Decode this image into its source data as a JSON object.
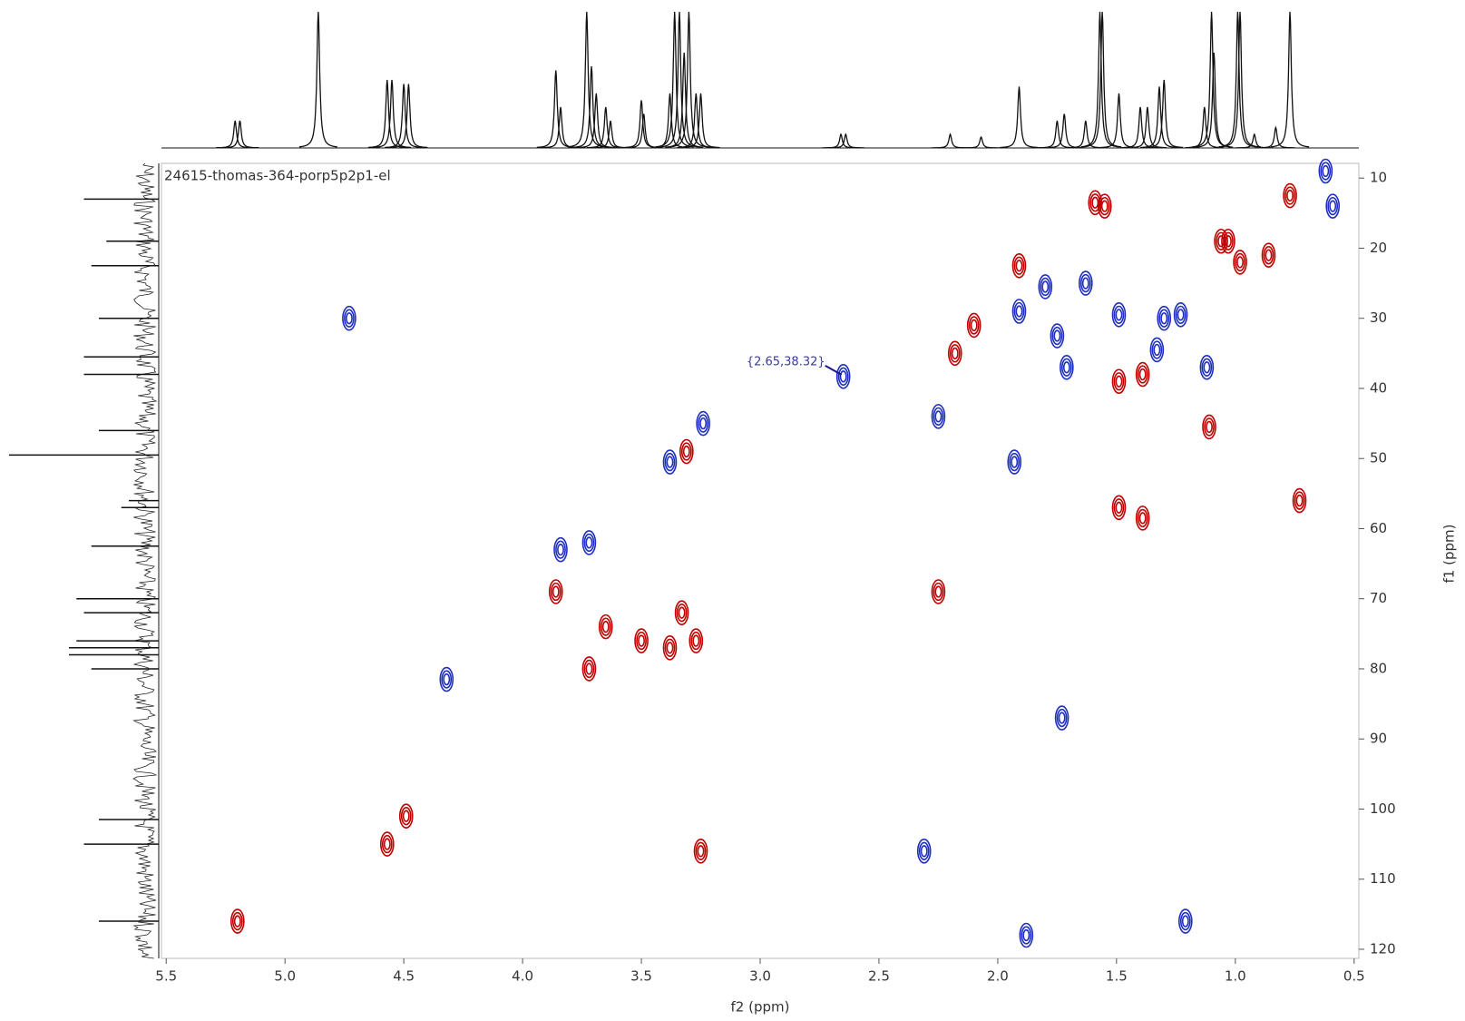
{
  "chart_data": {
    "type": "contour2d",
    "label": "24615-thomas-364-porp5p2p1-el",
    "x_label": "f2 (ppm)",
    "y_label": "f1 (ppm)",
    "annotation": "{2.65,38.32}",
    "xlim": [
      5.52,
      0.48
    ],
    "ylim": [
      7.9,
      121.3
    ],
    "xticks": [
      5.5,
      {
        "value": 5,
        "label": "5.0"
      },
      4.5,
      {
        "value": 4,
        "label": "4.0"
      },
      3.5,
      {
        "value": 3,
        "label": "3.0"
      },
      2.5,
      {
        "value": 2,
        "label": "2.0"
      },
      1.5,
      {
        "value": 1,
        "label": "1.0"
      },
      0.5
    ],
    "yticks": [
      10,
      20,
      30,
      40,
      50,
      60,
      70,
      80,
      90,
      100,
      110,
      120
    ],
    "series": [
      {
        "color": "#c00000",
        "x": [
          5.2,
          4.57,
          4.49,
          3.86,
          3.72,
          3.65,
          3.5,
          3.38,
          3.33,
          3.27,
          3.31,
          3.25,
          2.25,
          1.91,
          2.18,
          2.1,
          1.49,
          1.39,
          1.59,
          1.55,
          1.06,
          1.03,
          0.98,
          0.86,
          0.77,
          1.11,
          1.49,
          1.39,
          0.73
        ],
        "y": [
          116,
          105,
          101,
          69,
          80,
          74,
          76,
          77,
          72,
          76,
          49,
          106,
          69,
          22.5,
          35,
          31,
          39,
          38,
          13.5,
          14,
          19,
          19,
          22,
          21,
          12.5,
          45.5,
          57,
          58.5,
          56
        ]
      },
      {
        "color": "#1f2fc0",
        "x": [
          4.73,
          4.32,
          3.84,
          3.72,
          3.38,
          3.24,
          2.65,
          2.25,
          2.31,
          1.93,
          1.91,
          1.8,
          1.63,
          1.75,
          1.71,
          1.49,
          1.3,
          1.33,
          1.23,
          1.12,
          0.62,
          0.59,
          1.73,
          1.88,
          1.21
        ],
        "y": [
          30,
          81.5,
          63,
          62,
          50.5,
          45,
          38.3,
          44,
          106,
          50.5,
          29,
          25.5,
          25,
          32.5,
          37,
          29.5,
          30,
          34.5,
          29.5,
          37,
          9,
          14,
          87,
          118,
          116
        ]
      }
    ],
    "f2_projection": {
      "x": [
        5.21,
        5.19,
        4.86,
        4.57,
        4.55,
        4.5,
        4.48,
        3.86,
        3.84,
        3.73,
        3.71,
        3.69,
        3.65,
        3.63,
        3.5,
        3.49,
        3.38,
        3.36,
        3.34,
        3.32,
        3.3,
        3.27,
        3.25,
        2.66,
        2.64,
        2.2,
        2.07,
        1.91,
        1.75,
        1.72,
        1.63,
        1.57,
        1.56,
        1.49,
        1.4,
        1.37,
        1.32,
        1.3,
        1.13,
        1.1,
        1.09,
        0.99,
        0.98,
        0.92,
        0.83,
        0.77
      ],
      "heights": [
        0.2,
        0.2,
        1.0,
        0.5,
        0.5,
        0.47,
        0.47,
        0.57,
        0.3,
        1.0,
        0.6,
        0.4,
        0.3,
        0.2,
        0.35,
        0.25,
        0.4,
        1.0,
        1.0,
        0.7,
        1.0,
        0.4,
        0.4,
        0.1,
        0.1,
        0.1,
        0.08,
        0.45,
        0.2,
        0.25,
        0.2,
        1.0,
        1.0,
        0.4,
        0.3,
        0.3,
        0.45,
        0.5,
        0.3,
        1.0,
        0.7,
        1.0,
        1.0,
        0.1,
        0.15,
        1.0
      ]
    },
    "f1_projection": {
      "y": [
        13,
        19,
        22.5,
        30,
        35.5,
        38,
        46,
        49.5,
        56,
        57,
        62.5,
        70,
        72,
        76,
        77,
        78,
        80,
        101.5,
        105,
        116
      ],
      "heights": [
        0.5,
        0.35,
        0.45,
        0.4,
        0.5,
        0.5,
        0.4,
        1.0,
        0.2,
        0.25,
        0.45,
        0.55,
        0.5,
        0.55,
        0.6,
        0.6,
        0.45,
        0.4,
        0.5,
        0.4
      ]
    }
  }
}
